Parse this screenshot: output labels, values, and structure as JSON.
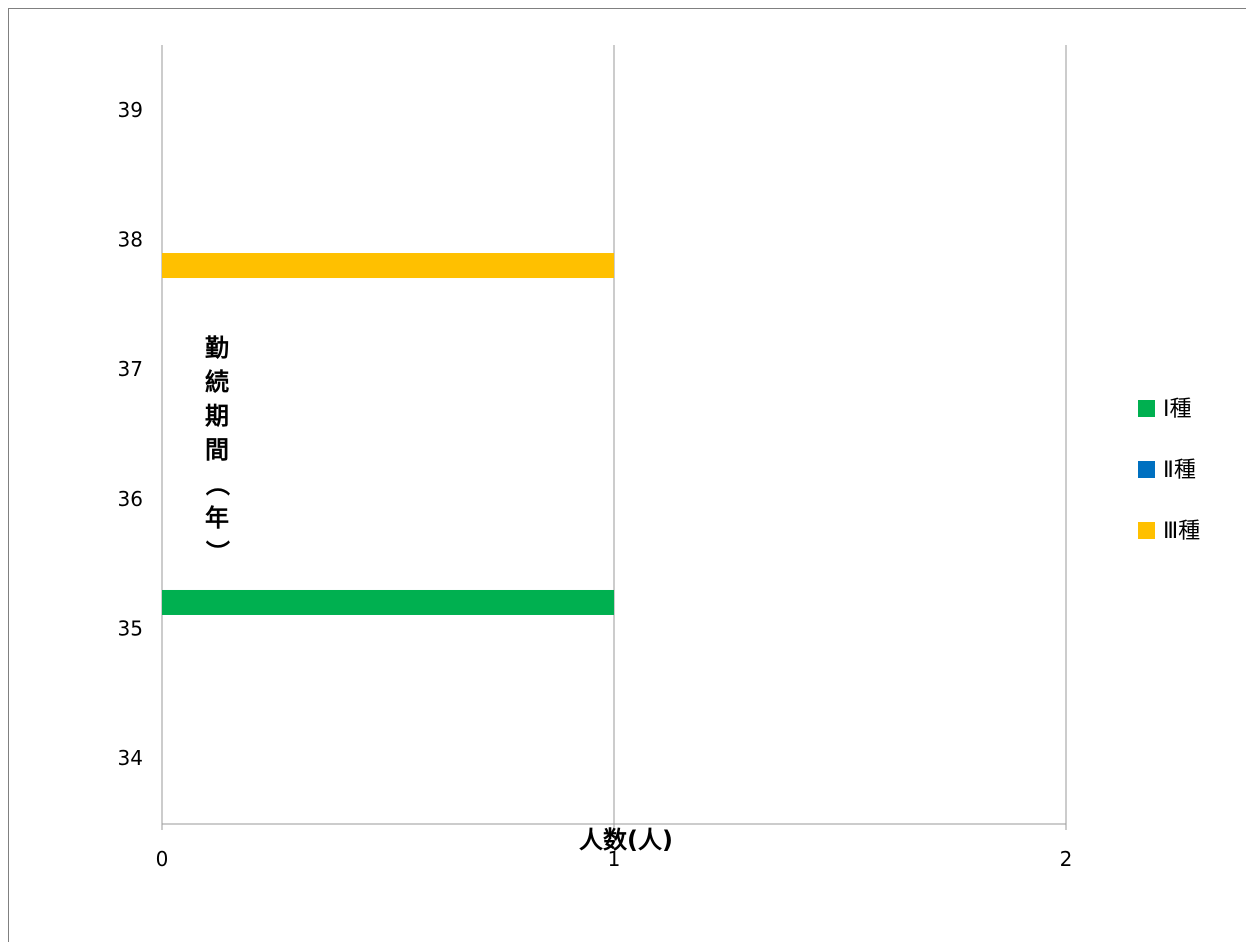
{
  "chart_data": {
    "type": "bar",
    "orientation": "horizontal",
    "xlabel": "人数(人)",
    "ylabel": "勤続期間（年）",
    "xlim": [
      0,
      2
    ],
    "ylim": [
      34,
      39
    ],
    "x_ticks": [
      "0",
      "1",
      "2"
    ],
    "y_ticks": [
      "34",
      "35",
      "36",
      "37",
      "38",
      "39"
    ],
    "grid": "vertical",
    "legend_position": "right",
    "series": [
      {
        "name": "Ⅰ種",
        "color": "#00B050",
        "points": [
          {
            "y": 35.2,
            "x": 1
          }
        ]
      },
      {
        "name": "Ⅱ種",
        "color": "#0070C0",
        "points": []
      },
      {
        "name": "Ⅲ種",
        "color": "#FFC000",
        "points": [
          {
            "y": 37.8,
            "x": 1
          }
        ]
      }
    ]
  }
}
